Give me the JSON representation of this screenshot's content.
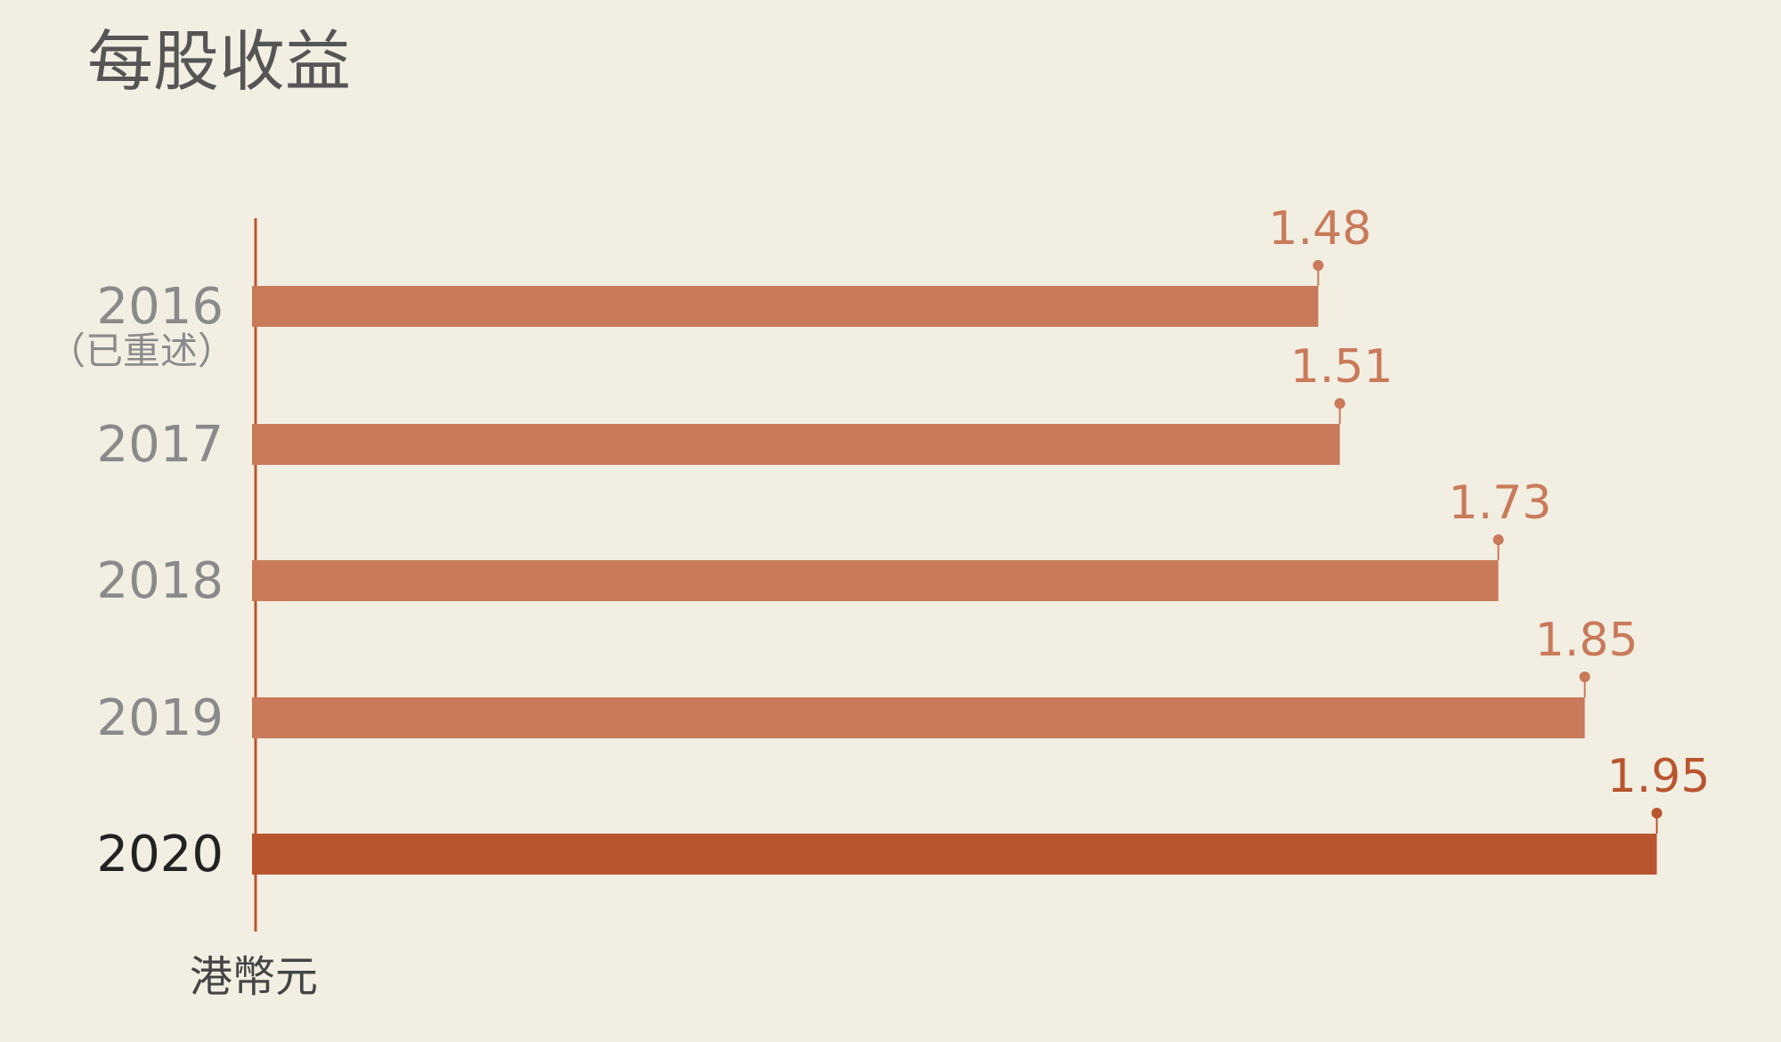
{
  "chart_data": {
    "type": "bar",
    "orientation": "horizontal",
    "title": "每股收益",
    "categories": [
      "2016",
      "2017",
      "2018",
      "2019",
      "2020"
    ],
    "annotations": [
      "（已重述）"
    ],
    "values": [
      1.48,
      1.51,
      1.73,
      1.85,
      1.95
    ],
    "colors": [
      "#c97a5a",
      "#c97a5a",
      "#c97a5a",
      "#c97a5a",
      "#b8552f"
    ],
    "category_colors": [
      "#8a8a8a",
      "#8a8a8a",
      "#8a8a8a",
      "#8a8a8a",
      "#222222"
    ],
    "axis_color": "#b8552f",
    "xlabel": "港幣元",
    "xlim": [
      0,
      2
    ]
  }
}
